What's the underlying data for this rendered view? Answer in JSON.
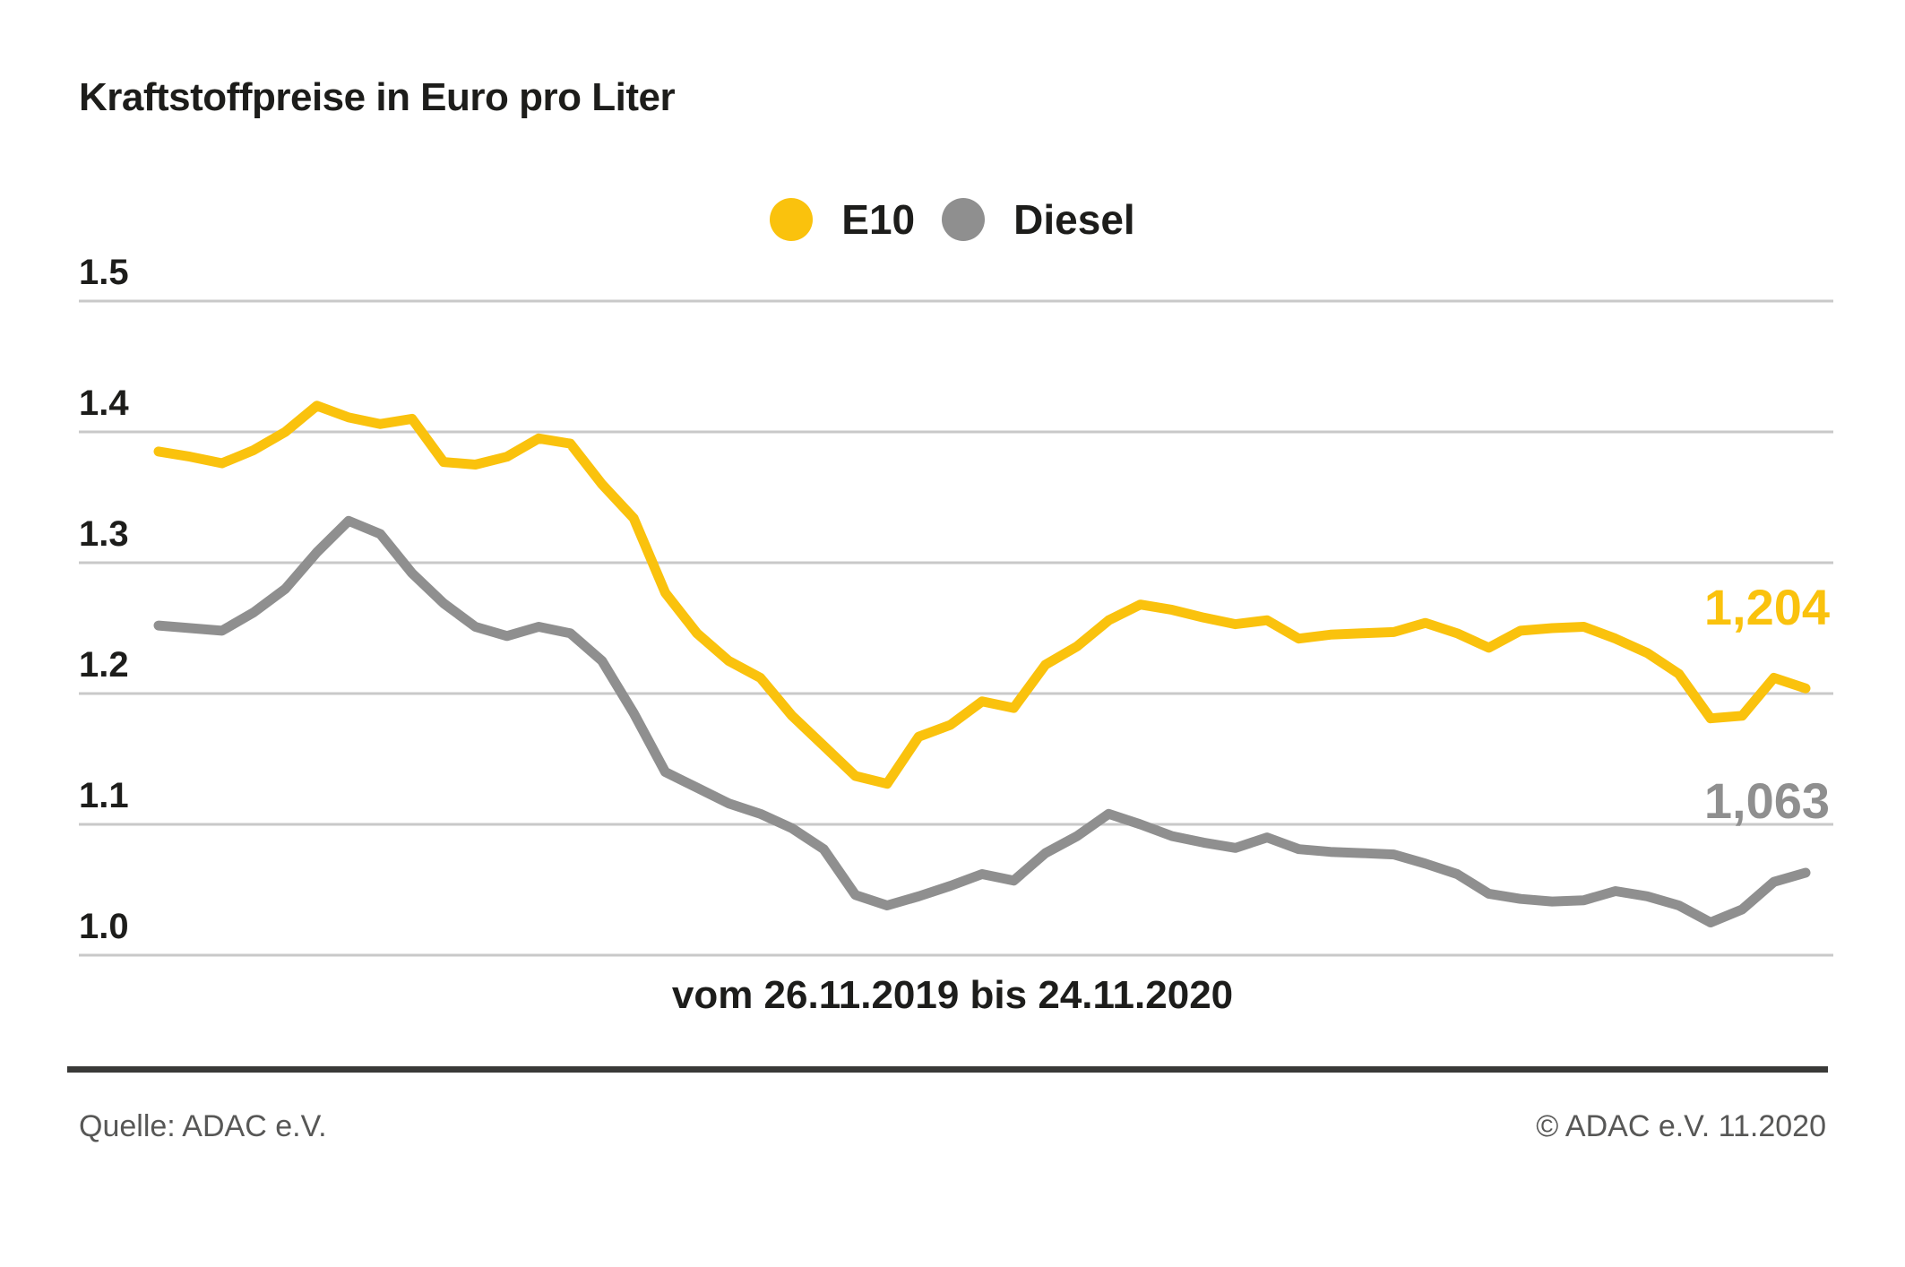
{
  "title": "Kraftstoffpreise in Euro pro Liter",
  "legend": {
    "items": [
      {
        "label": "E10",
        "color": "#fac20d"
      },
      {
        "label": "Diesel",
        "color": "#8f8f8f"
      }
    ]
  },
  "chart_data": {
    "type": "line",
    "title": "Kraftstoffpreise in Euro pro Liter",
    "x_caption": "vom 26.11.2019 bis 24.11.2020",
    "x_range": {
      "start": "26.11.2019",
      "end": "24.11.2020",
      "interval": "weekly"
    },
    "ylim": [
      1.0,
      1.5
    ],
    "grid": true,
    "legend_position": "top-center",
    "y_ticks": [
      {
        "label": "1.0",
        "value": 1.0
      },
      {
        "label": "1.1",
        "value": 1.1
      },
      {
        "label": "1.2",
        "value": 1.2
      },
      {
        "label": "1.3",
        "value": 1.3
      },
      {
        "label": "1.4",
        "value": 1.4
      },
      {
        "label": "1.5",
        "value": 1.5
      }
    ],
    "series": [
      {
        "name": "E10",
        "color": "#fac20d",
        "end_label": "1,204",
        "end_value": 1.204,
        "values": [
          1.385,
          1.381,
          1.376,
          1.386,
          1.4,
          1.42,
          1.411,
          1.406,
          1.41,
          1.377,
          1.375,
          1.381,
          1.395,
          1.391,
          1.36,
          1.334,
          1.277,
          1.246,
          1.225,
          1.212,
          1.183,
          1.16,
          1.137,
          1.131,
          1.167,
          1.176,
          1.194,
          1.189,
          1.222,
          1.236,
          1.256,
          1.268,
          1.264,
          1.258,
          1.253,
          1.256,
          1.242,
          1.245,
          1.246,
          1.247,
          1.254,
          1.246,
          1.235,
          1.248,
          1.25,
          1.251,
          1.242,
          1.231,
          1.215,
          1.181,
          1.183,
          1.212,
          1.204
        ]
      },
      {
        "name": "Diesel",
        "color": "#8f8f8f",
        "end_label": "1,063",
        "end_value": 1.063,
        "values": [
          1.252,
          1.25,
          1.248,
          1.262,
          1.28,
          1.308,
          1.332,
          1.322,
          1.292,
          1.269,
          1.251,
          1.244,
          1.251,
          1.246,
          1.225,
          1.185,
          1.14,
          1.128,
          1.116,
          1.108,
          1.097,
          1.081,
          1.046,
          1.038,
          1.045,
          1.053,
          1.062,
          1.057,
          1.078,
          1.091,
          1.108,
          1.1,
          1.091,
          1.086,
          1.082,
          1.09,
          1.081,
          1.079,
          1.078,
          1.077,
          1.07,
          1.062,
          1.047,
          1.043,
          1.041,
          1.042,
          1.049,
          1.045,
          1.038,
          1.025,
          1.035,
          1.056,
          1.063
        ]
      }
    ]
  },
  "footer": {
    "source": "Quelle: ADAC e.V.",
    "copyright": "© ADAC e.V. 11.2020"
  }
}
